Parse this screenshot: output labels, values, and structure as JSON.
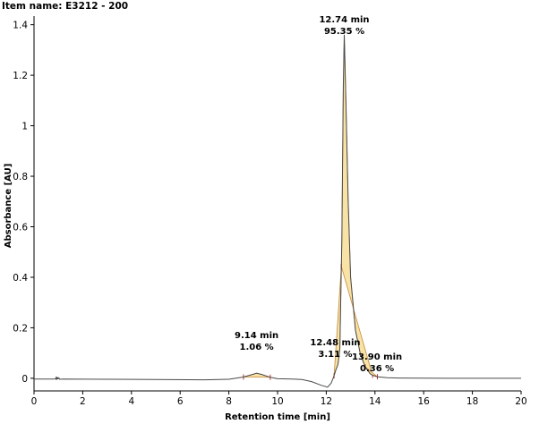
{
  "item_name": "Item name: E3212 - 200",
  "colors": {
    "trace": "#4a4a4a",
    "peak_fill": "#f8e2a6",
    "peak_edge": "#c58a3a",
    "baseline_marker": "#c0392b",
    "axis": "#000000"
  },
  "chart_data": {
    "type": "line",
    "title": "",
    "xlabel": "Retention time [min]",
    "ylabel": "Absorbance [AU]",
    "xlim": [
      0,
      20
    ],
    "ylim": [
      -0.05,
      1.42
    ],
    "x_ticks": [
      0,
      2,
      4,
      6,
      8,
      10,
      12,
      14,
      16,
      18,
      20
    ],
    "y_ticks": [
      0,
      0.2,
      0.4,
      0.6,
      0.8,
      1,
      1.2,
      1.4
    ],
    "x_tick_labels": [
      "0",
      "2",
      "4",
      "6",
      "8",
      "10",
      "12",
      "14",
      "16",
      "18",
      "20"
    ],
    "y_tick_labels": [
      "0",
      "0.2",
      "0.4",
      "0.6",
      "0.8",
      "1",
      "1.2",
      "1.4"
    ],
    "grid": false,
    "series": [
      {
        "points": [
          [
            0.0,
            -0.003
          ],
          [
            0.8,
            -0.003
          ],
          [
            0.95,
            -0.001
          ],
          [
            1.0,
            0.002
          ],
          [
            1.05,
            -0.004
          ],
          [
            1.2,
            -0.003
          ],
          [
            3.0,
            -0.004
          ],
          [
            5.0,
            -0.005
          ],
          [
            7.0,
            -0.006
          ],
          [
            8.0,
            -0.004
          ],
          [
            8.6,
            0.005
          ],
          [
            9.0,
            0.016
          ],
          [
            9.14,
            0.02
          ],
          [
            9.35,
            0.015
          ],
          [
            9.7,
            0.004
          ],
          [
            10.0,
            -0.002
          ],
          [
            10.6,
            -0.003
          ],
          [
            11.0,
            -0.005
          ],
          [
            11.4,
            -0.013
          ],
          [
            11.8,
            -0.028
          ],
          [
            12.05,
            -0.035
          ],
          [
            12.2,
            -0.02
          ],
          [
            12.32,
            0.01
          ],
          [
            12.4,
            0.035
          ],
          [
            12.48,
            0.055
          ],
          [
            12.56,
            0.12
          ],
          [
            12.64,
            0.55
          ],
          [
            12.7,
            1.15
          ],
          [
            12.74,
            1.36
          ],
          [
            12.8,
            1.12
          ],
          [
            12.9,
            0.7
          ],
          [
            13.0,
            0.4
          ],
          [
            13.2,
            0.19
          ],
          [
            13.4,
            0.095
          ],
          [
            13.6,
            0.045
          ],
          [
            13.8,
            0.018
          ],
          [
            13.9,
            0.012
          ],
          [
            14.1,
            0.006
          ],
          [
            14.5,
            0.002
          ],
          [
            15.0,
            0.001
          ],
          [
            17.0,
            0.0
          ],
          [
            20.0,
            0.0
          ]
        ]
      }
    ],
    "peaks": [
      {
        "rt": 9.14,
        "range": [
          8.6,
          9.7
        ],
        "label_time": "9.14 min",
        "label_area": "1.06 %"
      },
      {
        "rt": 12.48,
        "range": [
          12.32,
          12.62
        ],
        "label_time": "12.48 min",
        "label_area": "3.11 %"
      },
      {
        "rt": 12.74,
        "range": [
          12.62,
          13.9
        ],
        "label_time": "12.74 min",
        "label_area": "95.35 %"
      },
      {
        "rt": 13.9,
        "range": [
          13.6,
          14.1
        ],
        "label_time": "13.90 min",
        "label_area": "0.36 %"
      }
    ]
  }
}
